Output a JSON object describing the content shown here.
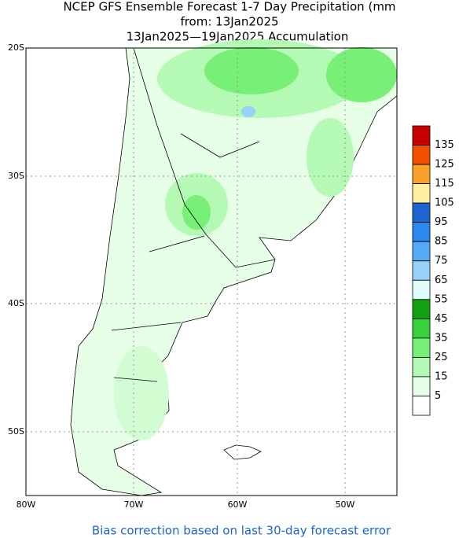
{
  "title": [
    "NCEP GFS Ensemble Forecast 1-7 Day Precipitation (mm",
    "from: 13Jan2025",
    "13Jan2025—19Jan2025 Accumulation"
  ],
  "map": {
    "lat_labels": [
      "20S",
      "30S",
      "40S",
      "50S"
    ],
    "lon_labels": [
      "80W",
      "70W",
      "60W",
      "50W"
    ]
  },
  "legend": {
    "labels": [
      "135",
      "125",
      "115",
      "105",
      "95",
      "85",
      "75",
      "65",
      "55",
      "45",
      "35",
      "25",
      "15",
      "5"
    ],
    "colors": [
      "#c80000",
      "#f05000",
      "#f8a028",
      "#fff0a0",
      "#1e64d2",
      "#2d87f0",
      "#55aaf5",
      "#96d2fa",
      "#e1fffa",
      "#10a010",
      "#38d23c",
      "#78f078",
      "#b4fab4",
      "#e6ffe6",
      "#ffffff"
    ]
  },
  "footer": "Bias correction based on last 30-day forecast error"
}
